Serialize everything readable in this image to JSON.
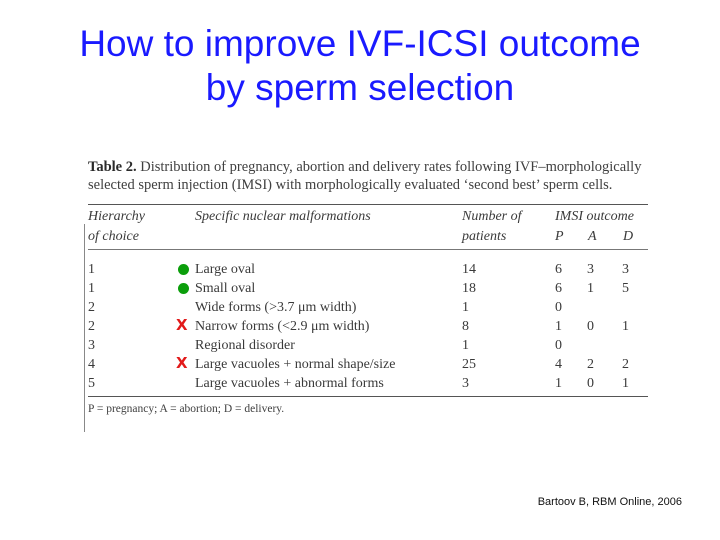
{
  "title": {
    "line1": "How to improve IVF-ICSI outcome",
    "line2": "by sperm selection"
  },
  "table": {
    "caption_label": "Table 2.",
    "caption_text": " Distribution of pregnancy, abortion and delivery rates following IVF–morphologically selected sperm injection (IMSI) with morphologically evaluated ‘second best’ sperm cells.",
    "headers": {
      "hierarchy_line1": "Hierarchy",
      "hierarchy_line2": "of choice",
      "malformations": "Specific nuclear malformations",
      "patients_line1": "Number of",
      "patients_line2": "patients",
      "outcome": "IMSI outcome",
      "p": "P",
      "a": "A",
      "d": "D"
    },
    "rows": [
      {
        "hierarchy": "1",
        "malformation": "Large oval",
        "patients": "14",
        "p": "6",
        "a": "3",
        "d": "3",
        "mark": "green-dot"
      },
      {
        "hierarchy": "1",
        "malformation": "Small oval",
        "patients": "18",
        "p": "6",
        "a": "1",
        "d": "5",
        "mark": "green-dot"
      },
      {
        "hierarchy": "2",
        "malformation": "Wide forms (>3.7 μm width)",
        "patients": "1",
        "p": "0",
        "a": "",
        "d": "",
        "mark": ""
      },
      {
        "hierarchy": "2",
        "malformation": "Narrow forms (<2.9 μm width)",
        "patients": "8",
        "p": "1",
        "a": "0",
        "d": "1",
        "mark": "red-x"
      },
      {
        "hierarchy": "3",
        "malformation": "Regional disorder",
        "patients": "1",
        "p": "0",
        "a": "",
        "d": "",
        "mark": ""
      },
      {
        "hierarchy": "4",
        "malformation": "Large vacuoles + normal shape/size",
        "patients": "25",
        "p": "4",
        "a": "2",
        "d": "2",
        "mark": "red-x"
      },
      {
        "hierarchy": "5",
        "malformation": "Large vacuoles + abnormal forms",
        "patients": "3",
        "p": "1",
        "a": "0",
        "d": "1",
        "mark": ""
      }
    ],
    "footnote": "P = pregnancy; A = abortion; D = delivery."
  },
  "marks": {
    "x_glyph": "X",
    "dot_color": "#0b9e0b",
    "x_color": "#e21a1a"
  },
  "citation": "Bartoov B, RBM Online, 2006"
}
